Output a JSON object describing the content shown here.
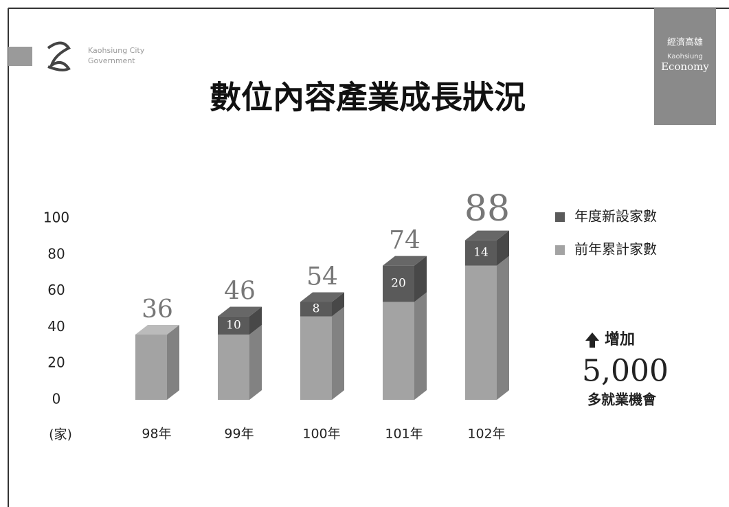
{
  "logo": {
    "lines": [
      "Kaohsiung City",
      "Government"
    ]
  },
  "badge": {
    "lines": [
      "經濟高雄",
      "Kaohsiung",
      "Economy"
    ]
  },
  "chart_data": {
    "type": "bar",
    "stacked": true,
    "title": "數位內容產業成長狀況",
    "y_label": "(家)",
    "categories": [
      "98年",
      "99年",
      "100年",
      "101年",
      "102年"
    ],
    "series": [
      {
        "name": "前年累計家數",
        "color": "#a3a3a3",
        "values": [
          36,
          36,
          46,
          54,
          74
        ]
      },
      {
        "name": "年度新設家數",
        "color": "#5a5a5a",
        "values": [
          null,
          10,
          8,
          20,
          14
        ]
      }
    ],
    "totals": [
      36,
      46,
      54,
      74,
      88
    ],
    "ylim": [
      0,
      100
    ],
    "yticks": [
      0,
      20,
      40,
      60,
      80,
      100
    ],
    "grid": false,
    "legend": "top-right",
    "annotation": {
      "arrow_text": "增加",
      "number": "5,000",
      "caption": "多就業機會"
    }
  }
}
